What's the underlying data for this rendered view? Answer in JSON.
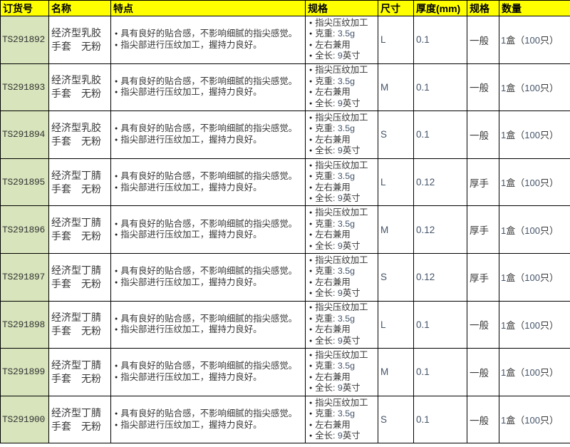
{
  "icons": {
    "bullet": "●"
  },
  "colors": {
    "header_bg": "#FFFF00",
    "header_text": "#000000",
    "first_col_bg": "#D8E4BC",
    "grid_line": "#000000",
    "cjk_text": "#383838",
    "ascii_text": "#44546A"
  },
  "table": {
    "columns": [
      {
        "key": "order_no",
        "label": "订货号"
      },
      {
        "key": "name",
        "label": "名称"
      },
      {
        "key": "features",
        "label": "特点"
      },
      {
        "key": "specs",
        "label": "规格"
      },
      {
        "key": "size",
        "label": "尺寸"
      },
      {
        "key": "thickness",
        "label": "厚度(mm)"
      },
      {
        "key": "grade",
        "label": "规格"
      },
      {
        "key": "quantity",
        "label": "数量"
      }
    ],
    "rows": [
      {
        "order_no": "TS291892",
        "name": "经济型乳胶手套　无粉",
        "features": [
          "具有良好的贴合感，不影响细腻的指尖感觉。",
          "指尖部进行压纹加工，握持力良好。"
        ],
        "specs": [
          "指尖压纹加工",
          "克重: 3.5g",
          "左右兼用",
          "全长: 9英寸"
        ],
        "size": "L",
        "thickness": "0.1",
        "grade": "一般",
        "quantity": "1盒（100只）"
      },
      {
        "order_no": "TS291893",
        "name": "经济型乳胶手套　无粉",
        "features": [
          "具有良好的贴合感，不影响细腻的指尖感觉。",
          "指尖部进行压纹加工，握持力良好。"
        ],
        "specs": [
          "指尖压纹加工",
          "克重: 3.5g",
          "左右兼用",
          "全长: 9英寸"
        ],
        "size": "M",
        "thickness": "0.1",
        "grade": "一般",
        "quantity": "1盒（100只）"
      },
      {
        "order_no": "TS291894",
        "name": "经济型乳胶手套　无粉",
        "features": [
          "具有良好的贴合感，不影响细腻的指尖感觉。",
          "指尖部进行压纹加工，握持力良好。"
        ],
        "specs": [
          "指尖压纹加工",
          "克重: 3.5g",
          "左右兼用",
          "全长: 9英寸"
        ],
        "size": "S",
        "thickness": "0.1",
        "grade": "一般",
        "quantity": "1盒（100只）"
      },
      {
        "order_no": "TS291895",
        "name": "经济型丁腈手套　无粉",
        "features": [
          "具有良好的贴合感，不影响细腻的指尖感觉。",
          "指尖部进行压纹加工，握持力良好。"
        ],
        "specs": [
          "指尖压纹加工",
          "克重: 3.5g",
          "左右兼用",
          "全长: 9英寸"
        ],
        "size": "L",
        "thickness": "0.12",
        "grade": "厚手",
        "quantity": "1盒（100只）"
      },
      {
        "order_no": "TS291896",
        "name": "经济型丁腈手套　无粉",
        "features": [
          "具有良好的贴合感，不影响细腻的指尖感觉。",
          "指尖部进行压纹加工，握持力良好。"
        ],
        "specs": [
          "指尖压纹加工",
          "克重: 3.5g",
          "左右兼用",
          "全长: 9英寸"
        ],
        "size": "M",
        "thickness": "0.12",
        "grade": "厚手",
        "quantity": "1盒（100只）"
      },
      {
        "order_no": "TS291897",
        "name": "经济型丁腈手套　无粉",
        "features": [
          "具有良好的贴合感，不影响细腻的指尖感觉。",
          "指尖部进行压纹加工，握持力良好。"
        ],
        "specs": [
          "指尖压纹加工",
          "克重: 3.5g",
          "左右兼用",
          "全长: 9英寸"
        ],
        "size": "S",
        "thickness": "0.12",
        "grade": "厚手",
        "quantity": "1盒（100只）"
      },
      {
        "order_no": "TS291898",
        "name": "经济型丁腈手套　无粉",
        "features": [
          "具有良好的贴合感，不影响细腻的指尖感觉。",
          "指尖部进行压纹加工，握持力良好。"
        ],
        "specs": [
          "指尖压纹加工",
          "克重: 3.5g",
          "左右兼用",
          "全长: 9英寸"
        ],
        "size": "L",
        "thickness": "0.1",
        "grade": "一般",
        "quantity": "1盒（100只）"
      },
      {
        "order_no": "TS291899",
        "name": "经济型丁腈手套　无粉",
        "features": [
          "具有良好的贴合感，不影响细腻的指尖感觉。",
          "指尖部进行压纹加工，握持力良好。"
        ],
        "specs": [
          "指尖压纹加工",
          "克重: 3.5g",
          "左右兼用",
          "全长: 9英寸"
        ],
        "size": "M",
        "thickness": "0.1",
        "grade": "一般",
        "quantity": "1盒（100只）"
      },
      {
        "order_no": "TS291900",
        "name": "经济型丁腈手套　无粉",
        "features": [
          "具有良好的贴合感，不影响细腻的指尖感觉。",
          "指尖部进行压纹加工，握持力良好。"
        ],
        "specs": [
          "指尖压纹加工",
          "克重: 3.5g",
          "左右兼用",
          "全长: 9英寸"
        ],
        "size": "S",
        "thickness": "0.1",
        "grade": "一般",
        "quantity": "1盒（100只）"
      }
    ]
  }
}
